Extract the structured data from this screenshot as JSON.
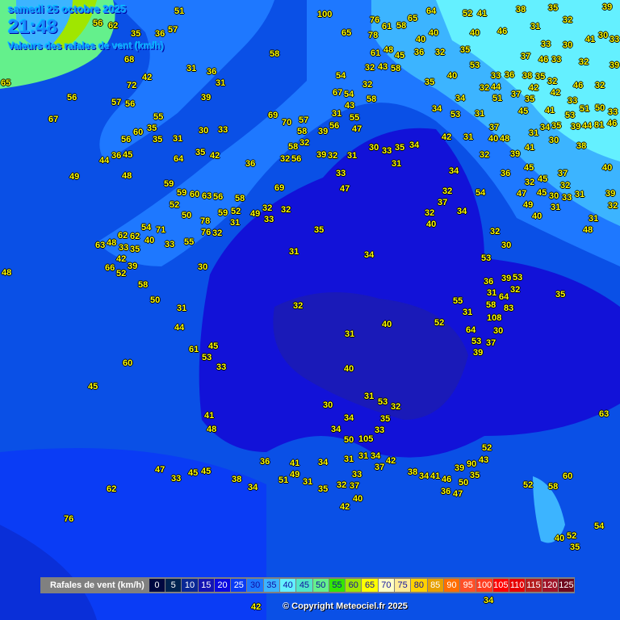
{
  "header": {
    "date": "samedi 25 octobre 2025",
    "time": "21:48",
    "subtitle": "Valeurs des rafales de vent (km/h)"
  },
  "legend": {
    "title": "Rafales de vent (km/h)",
    "items": [
      {
        "label": "0",
        "color": "#000840"
      },
      {
        "label": "5",
        "color": "#00234f"
      },
      {
        "label": "10",
        "color": "#0a2896"
      },
      {
        "label": "15",
        "color": "#1414b4"
      },
      {
        "label": "20",
        "color": "#0a0ae0"
      },
      {
        "label": "25",
        "color": "#0a3cf5"
      },
      {
        "label": "30",
        "color": "#1e78ff"
      },
      {
        "label": "35",
        "color": "#3cb4ff"
      },
      {
        "label": "40",
        "color": "#64f0ff"
      },
      {
        "label": "45",
        "color": "#50e6c8"
      },
      {
        "label": "50",
        "color": "#64f08c"
      },
      {
        "label": "55",
        "color": "#32e600"
      },
      {
        "label": "60",
        "color": "#a0e600"
      },
      {
        "label": "65",
        "color": "#ffff00"
      },
      {
        "label": "70",
        "color": "#ffffc8"
      },
      {
        "label": "75",
        "color": "#ffeb96"
      },
      {
        "label": "80",
        "color": "#ffd200"
      },
      {
        "label": "85",
        "color": "#e6a000"
      },
      {
        "label": "90",
        "color": "#ff6e00"
      },
      {
        "label": "95",
        "color": "#ff5028"
      },
      {
        "label": "100",
        "color": "#ff3c1e"
      },
      {
        "label": "105",
        "color": "#ff0000"
      },
      {
        "label": "110",
        "color": "#e60000"
      },
      {
        "label": "115",
        "color": "#b41e1e"
      },
      {
        "label": "120",
        "color": "#a01428"
      },
      {
        "label": "125",
        "color": "#6e0a1e"
      }
    ]
  },
  "copyright": "© Copyright Meteociel.fr 2025",
  "stations": [
    "100",
    "51",
    "57",
    "56",
    "62",
    "35",
    "36",
    "68",
    "42",
    "31",
    "36",
    "31",
    "65",
    "72",
    "56",
    "57",
    "56",
    "39",
    "67",
    "55",
    "35",
    "60",
    "56",
    "31",
    "30",
    "33",
    "35",
    "35",
    "42",
    "64",
    "44",
    "36",
    "45",
    "49",
    "48",
    "59",
    "59",
    "60",
    "63",
    "56",
    "58",
    "52",
    "50",
    "59",
    "52",
    "78",
    "76",
    "32",
    "31",
    "49",
    "32",
    "33",
    "32",
    "69",
    "36",
    "55",
    "33",
    "54",
    "71",
    "40",
    "62",
    "62",
    "48",
    "63",
    "33",
    "35",
    "42",
    "66",
    "39",
    "52",
    "30",
    "48",
    "58",
    "50",
    "31",
    "44",
    "61",
    "45",
    "53",
    "33",
    "60",
    "45",
    "41",
    "48",
    "47",
    "33",
    "45",
    "45",
    "62",
    "76",
    "38",
    "34",
    "36",
    "41",
    "49",
    "51",
    "31",
    "34",
    "31",
    "31",
    "34",
    "42",
    "37",
    "35",
    "32",
    "33",
    "37",
    "42",
    "40",
    "34",
    "34",
    "50",
    "105",
    "33",
    "35",
    "53",
    "32",
    "31",
    "30",
    "40",
    "31",
    "40",
    "32",
    "31",
    "34",
    "35",
    "47",
    "33",
    "32",
    "31",
    "30",
    "33",
    "35",
    "34",
    "31",
    "32",
    "40",
    "37",
    "32",
    "34",
    "34",
    "54",
    "32",
    "30",
    "53",
    "55",
    "31",
    "52",
    "64",
    "53",
    "39",
    "37",
    "108",
    "30",
    "36",
    "31",
    "58",
    "64",
    "83",
    "39",
    "53",
    "32",
    "35",
    "63",
    "52",
    "43",
    "90",
    "39",
    "35",
    "50",
    "47",
    "46",
    "36",
    "41",
    "34",
    "38",
    "52",
    "58",
    "60",
    "54",
    "40",
    "52",
    "35",
    "42",
    "34",
    "65",
    "78",
    "76",
    "61",
    "65",
    "58",
    "40",
    "40",
    "36",
    "32",
    "35",
    "40",
    "46",
    "64",
    "52",
    "41",
    "38",
    "35",
    "39",
    "32",
    "31",
    "33",
    "30",
    "41",
    "30",
    "33",
    "37",
    "46",
    "33",
    "32",
    "38",
    "35",
    "42",
    "32",
    "33",
    "44",
    "36",
    "32",
    "51",
    "37",
    "35",
    "42",
    "46",
    "32",
    "39",
    "33",
    "45",
    "41",
    "51",
    "50",
    "33",
    "53",
    "34",
    "31",
    "35",
    "39",
    "44",
    "81",
    "46",
    "38",
    "30",
    "41",
    "45",
    "37",
    "40",
    "36",
    "39",
    "48",
    "40",
    "37",
    "31",
    "32",
    "42",
    "53",
    "31",
    "34",
    "34",
    "35",
    "40",
    "53",
    "58",
    "54",
    "32",
    "58",
    "67",
    "54",
    "43",
    "55",
    "57",
    "70",
    "58",
    "39",
    "56",
    "32",
    "47",
    "31",
    "69",
    "58",
    "56",
    "32",
    "39",
    "45",
    "32",
    "47",
    "32",
    "45",
    "30",
    "33",
    "31",
    "39",
    "32",
    "31",
    "49",
    "40",
    "31",
    "48",
    "43",
    "58",
    "61",
    "48",
    "45",
    "32"
  ]
}
